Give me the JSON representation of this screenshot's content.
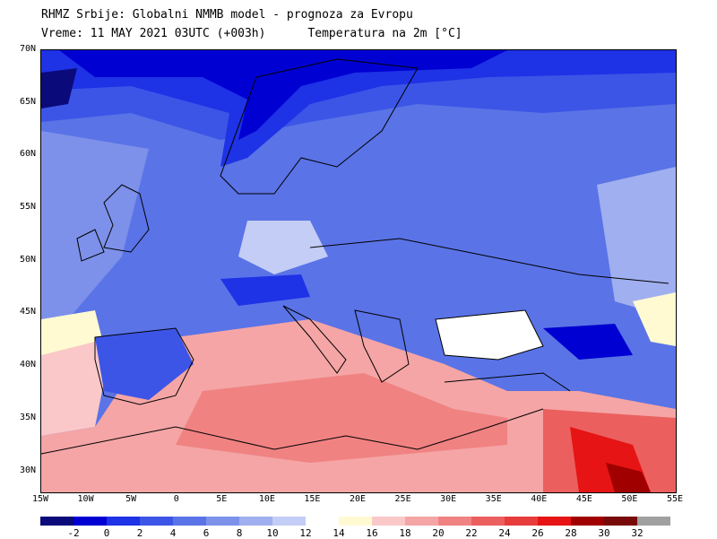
{
  "header": {
    "title_line1": "RHMZ Srbije: Globalni NMMB model - prognoza za Evropu",
    "title_line2": "Vreme: 11 MAY 2021 03UTC (+003h)      Temperatura na 2m [°C]"
  },
  "map": {
    "lon_range": [
      -15,
      55
    ],
    "lat_range": [
      28,
      70
    ],
    "lat_ticks": [
      {
        "value": 70,
        "label": "70N"
      },
      {
        "value": 65,
        "label": "65N"
      },
      {
        "value": 60,
        "label": "60N"
      },
      {
        "value": 55,
        "label": "55N"
      },
      {
        "value": 50,
        "label": "50N"
      },
      {
        "value": 45,
        "label": "45N"
      },
      {
        "value": 40,
        "label": "40N"
      },
      {
        "value": 35,
        "label": "35N"
      },
      {
        "value": 30,
        "label": "30N"
      }
    ],
    "lon_ticks": [
      {
        "value": -15,
        "label": "15W"
      },
      {
        "value": -10,
        "label": "10W"
      },
      {
        "value": -5,
        "label": "5W"
      },
      {
        "value": 0,
        "label": "0"
      },
      {
        "value": 5,
        "label": "5E"
      },
      {
        "value": 10,
        "label": "10E"
      },
      {
        "value": 15,
        "label": "15E"
      },
      {
        "value": 20,
        "label": "20E"
      },
      {
        "value": 25,
        "label": "25E"
      },
      {
        "value": 30,
        "label": "30E"
      },
      {
        "value": 35,
        "label": "35E"
      },
      {
        "value": 40,
        "label": "40E"
      },
      {
        "value": 45,
        "label": "45E"
      },
      {
        "value": 50,
        "label": "50E"
      },
      {
        "value": 55,
        "label": "55E"
      }
    ]
  },
  "colorbar": {
    "unit": "°C",
    "bins": [
      {
        "color": "#0a0a7a"
      },
      {
        "color": "#0000d2"
      },
      {
        "color": "#1e32e6"
      },
      {
        "color": "#3c55e6"
      },
      {
        "color": "#5a73e6"
      },
      {
        "color": "#7d91ea"
      },
      {
        "color": "#a0afef"
      },
      {
        "color": "#c3cdf5"
      },
      {
        "color": "#ffffff"
      },
      {
        "color": "#fffad2"
      },
      {
        "color": "#fac8c8"
      },
      {
        "color": "#f5a5a5"
      },
      {
        "color": "#f08282"
      },
      {
        "color": "#eb5f5f"
      },
      {
        "color": "#e63c3c"
      },
      {
        "color": "#e61414"
      },
      {
        "color": "#a00000"
      },
      {
        "color": "#780a0a"
      },
      {
        "color": "#a0a0a0"
      }
    ],
    "labels": [
      "-2",
      "0",
      "2",
      "4",
      "6",
      "8",
      "10",
      "12",
      "14",
      "16",
      "18",
      "20",
      "22",
      "24",
      "26",
      "28",
      "30",
      "32"
    ]
  }
}
